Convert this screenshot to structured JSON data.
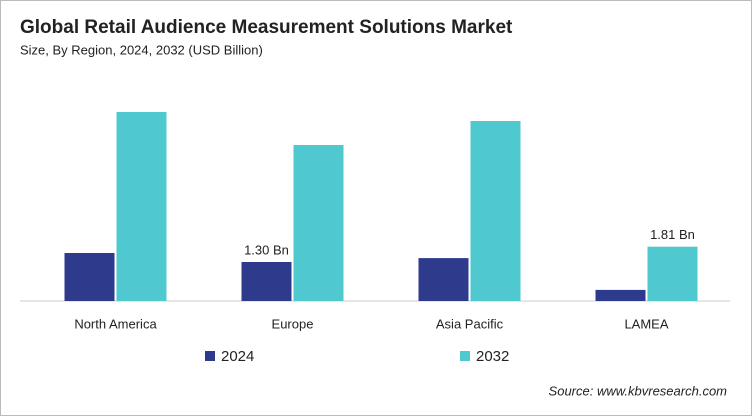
{
  "chart_data": {
    "type": "bar",
    "title": "Global Retail Audience Measurement Solutions Market",
    "subtitle": "Size, By Region, 2024, 2032 (USD Billion)",
    "categories": [
      "North America",
      "Europe",
      "Asia Pacific",
      "LAMEA"
    ],
    "series": [
      {
        "name": "2024",
        "color": "#2e3a8c",
        "values": [
          1.6,
          1.3,
          1.43,
          0.37
        ],
        "value_labels": [
          null,
          "1.30 Bn",
          null,
          null
        ]
      },
      {
        "name": "2032",
        "color": "#4fc8d0",
        "values": [
          6.3,
          5.2,
          6.0,
          1.81
        ],
        "value_labels": [
          null,
          null,
          null,
          "1.81 Bn"
        ]
      }
    ],
    "source": "Source: www.kbvresearch.com"
  }
}
